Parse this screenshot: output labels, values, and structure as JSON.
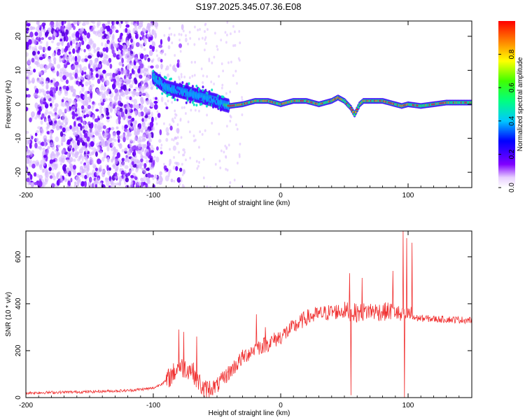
{
  "title": "S197.2025.345.07.36.E08",
  "chart_data": [
    {
      "type": "heatmap",
      "xlabel": "Height of straight line (km)",
      "ylabel": "Frequency (Hz)",
      "xlim": [
        -200,
        150
      ],
      "ylim": [
        -24.5,
        24.5
      ],
      "xticks": [
        -200,
        -100,
        0,
        100
      ],
      "yticks": [
        -20,
        -10,
        0,
        10,
        20
      ],
      "colorbar": {
        "label": "Normalized spectral amplitude",
        "range": [
          0,
          1
        ],
        "ticks": [
          0.0,
          0.2,
          0.4,
          0.6,
          0.8
        ],
        "tick_labels": [
          "0.0",
          "0.2",
          "0.4",
          "0.6",
          "0.8"
        ]
      },
      "ridge": {
        "x": [
          -100,
          -90,
          -80,
          -70,
          -60,
          -50,
          -45,
          -40,
          -30,
          -20,
          -10,
          0,
          10,
          20,
          30,
          40,
          45,
          50,
          55,
          58,
          62,
          65,
          70,
          80,
          90,
          95,
          100,
          110,
          120,
          130,
          140,
          150
        ],
        "freq": [
          8,
          5,
          4,
          3,
          2,
          1,
          0,
          -0.5,
          0,
          1,
          1,
          0,
          1,
          1,
          0,
          1,
          2,
          1,
          -1,
          -3,
          0,
          1,
          1,
          1,
          0,
          -0.5,
          0,
          -0.5,
          0,
          0.5,
          0.5,
          0.5
        ]
      }
    },
    {
      "type": "line",
      "xlabel": "Height of straight line (km)",
      "ylabel": "SNR (10 * v/v)",
      "xlim": [
        -200,
        150
      ],
      "ylim": [
        0,
        710
      ],
      "xticks": [
        -200,
        -100,
        0,
        100
      ],
      "yticks": [
        0,
        200,
        400,
        600
      ],
      "series": [
        {
          "name": "SNR",
          "color": "#f03030",
          "trend_x": [
            -200,
            -150,
            -120,
            -100,
            -90,
            -80,
            -70,
            -60,
            -50,
            -40,
            -30,
            -20,
            -10,
            0,
            10,
            20,
            30,
            40,
            50,
            60,
            70,
            80,
            90,
            95,
            100,
            105,
            120,
            150
          ],
          "trend_y": [
            20,
            25,
            30,
            40,
            70,
            130,
            120,
            30,
            50,
            110,
            170,
            210,
            230,
            260,
            300,
            340,
            355,
            365,
            370,
            360,
            370,
            365,
            370,
            340,
            360,
            340,
            335,
            330
          ],
          "spikes": [
            {
              "x": -80,
              "y": 290
            },
            {
              "x": -76,
              "y": 280
            },
            {
              "x": -66,
              "y": 260
            },
            {
              "x": -19,
              "y": 355
            },
            {
              "x": -12,
              "y": 300
            },
            {
              "x": 54,
              "y": 530
            },
            {
              "x": 55,
              "y": 10
            },
            {
              "x": 64,
              "y": 510
            },
            {
              "x": 88,
              "y": 540
            },
            {
              "x": 96,
              "y": 710
            },
            {
              "x": 97,
              "y": 0
            },
            {
              "x": 99,
              "y": 680
            },
            {
              "x": 103,
              "y": 660
            }
          ]
        }
      ]
    }
  ]
}
